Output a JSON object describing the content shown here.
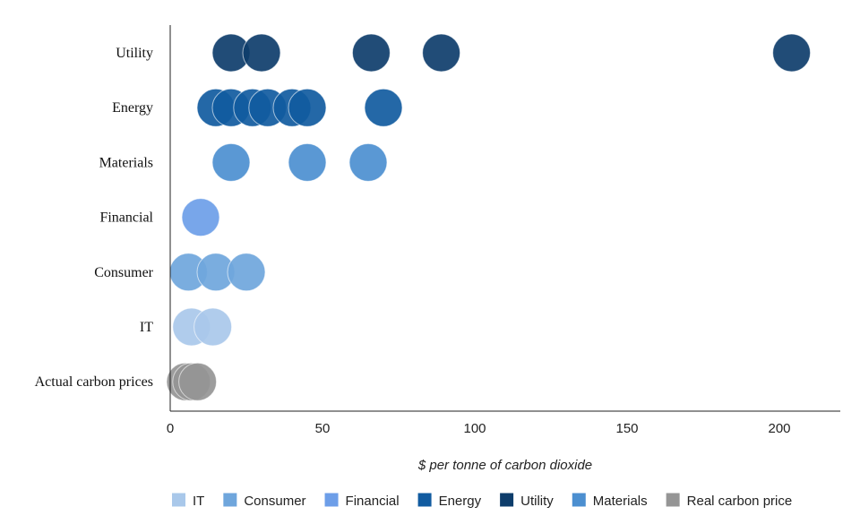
{
  "chart_data": {
    "type": "scatter",
    "title": "",
    "xlabel": "$ per tonne of carbon dioxide",
    "ylabel": "",
    "xlim": [
      0,
      220
    ],
    "xticks": [
      0,
      50,
      100,
      150,
      200
    ],
    "xtick_labels": [
      "0",
      "50",
      "100",
      "150",
      "200"
    ],
    "categories": [
      "Utility",
      "Energy",
      "Materials",
      "Financial",
      "Consumer",
      "IT",
      "Actual carbon prices"
    ],
    "grid": false,
    "legend_position": "bottom",
    "series": [
      {
        "name": "IT",
        "category": "IT",
        "color": "#a9c8ea",
        "values": [
          7,
          14
        ]
      },
      {
        "name": "Consumer",
        "category": "Consumer",
        "color": "#6fa6dc",
        "values": [
          6,
          15,
          25
        ]
      },
      {
        "name": "Financial",
        "category": "Financial",
        "color": "#6d9ee8",
        "values": [
          10
        ]
      },
      {
        "name": "Energy",
        "category": "Energy",
        "color": "#115ba0",
        "values": [
          15,
          20,
          27,
          32,
          40,
          45,
          70
        ]
      },
      {
        "name": "Utility",
        "category": "Utility",
        "color": "#0e3d6b",
        "values": [
          20,
          30,
          66,
          89,
          204
        ]
      },
      {
        "name": "Materials",
        "category": "Materials",
        "color": "#4c8fd0",
        "values": [
          20,
          45,
          65
        ]
      },
      {
        "name": "Real carbon price",
        "category": "Actual carbon prices",
        "color": "#959595",
        "values": [
          5,
          7,
          9
        ]
      }
    ]
  }
}
